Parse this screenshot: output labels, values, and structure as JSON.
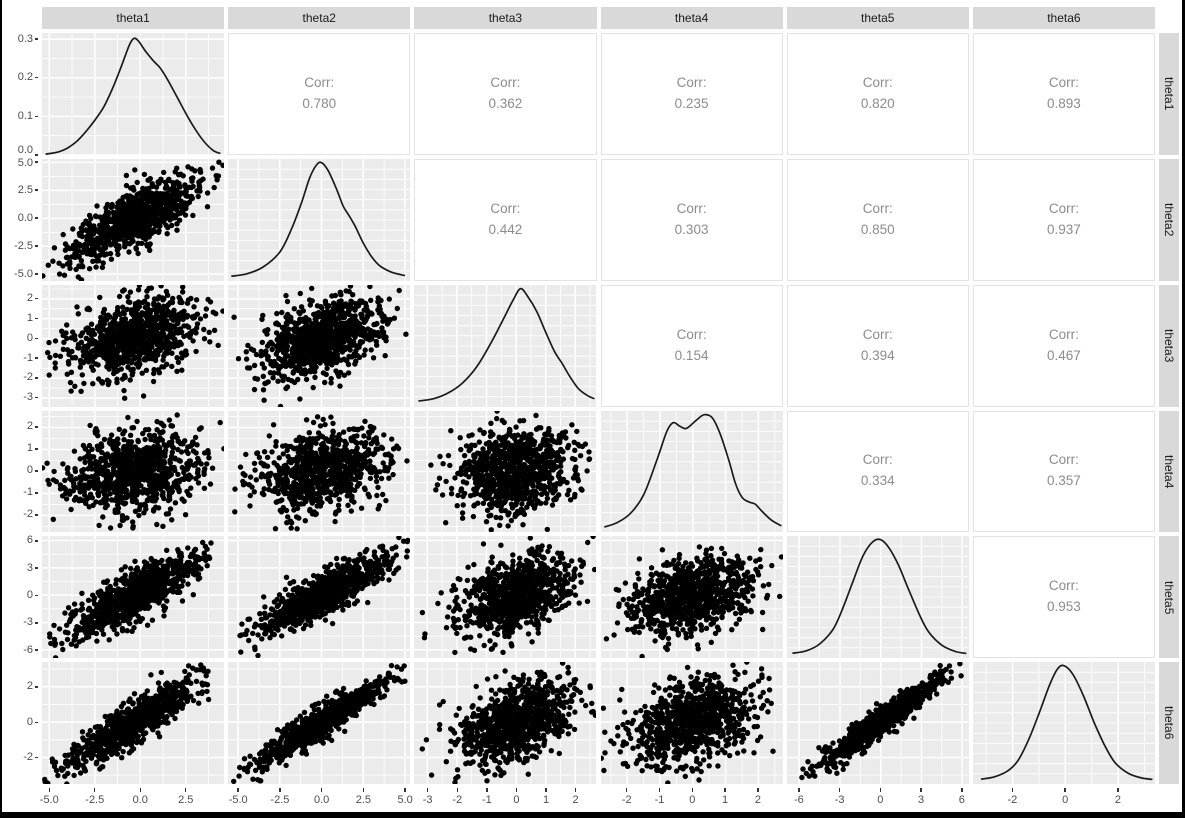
{
  "chart_data": {
    "type": "scatter",
    "subtype": "pairs-matrix-ggpairs",
    "title": "",
    "variables": [
      "theta1",
      "theta2",
      "theta3",
      "theta4",
      "theta5",
      "theta6"
    ],
    "matrix_layout": {
      "diagonal": "density-curve",
      "lower_triangle": "scatterplot",
      "upper_triangle": "correlation-label",
      "top_strips": [
        "theta1",
        "theta2",
        "theta3",
        "theta4",
        "theta5",
        "theta6"
      ],
      "right_strips": [
        "theta1",
        "theta2",
        "theta3",
        "theta4",
        "theta5",
        "theta6"
      ],
      "grid": "on"
    },
    "corr_prefix": "Corr:",
    "correlations": [
      {
        "x": "theta1",
        "y": "theta2",
        "value": 0.78,
        "label": "0.780"
      },
      {
        "x": "theta1",
        "y": "theta3",
        "value": 0.362,
        "label": "0.362"
      },
      {
        "x": "theta1",
        "y": "theta4",
        "value": 0.235,
        "label": "0.235"
      },
      {
        "x": "theta1",
        "y": "theta5",
        "value": 0.82,
        "label": "0.820"
      },
      {
        "x": "theta1",
        "y": "theta6",
        "value": 0.893,
        "label": "0.893"
      },
      {
        "x": "theta2",
        "y": "theta3",
        "value": 0.442,
        "label": "0.442"
      },
      {
        "x": "theta2",
        "y": "theta4",
        "value": 0.303,
        "label": "0.303"
      },
      {
        "x": "theta2",
        "y": "theta5",
        "value": 0.85,
        "label": "0.850"
      },
      {
        "x": "theta2",
        "y": "theta6",
        "value": 0.937,
        "label": "0.937"
      },
      {
        "x": "theta3",
        "y": "theta4",
        "value": 0.154,
        "label": "0.154"
      },
      {
        "x": "theta3",
        "y": "theta5",
        "value": 0.394,
        "label": "0.394"
      },
      {
        "x": "theta3",
        "y": "theta6",
        "value": 0.467,
        "label": "0.467"
      },
      {
        "x": "theta4",
        "y": "theta5",
        "value": 0.334,
        "label": "0.334"
      },
      {
        "x": "theta4",
        "y": "theta6",
        "value": 0.357,
        "label": "0.357"
      },
      {
        "x": "theta5",
        "y": "theta6",
        "value": 0.953,
        "label": "0.953"
      }
    ],
    "axes": {
      "theta1": {
        "range": [
          -5.4,
          4.6
        ],
        "ticks": [
          -5.0,
          -2.5,
          0.0,
          2.5
        ],
        "labels": [
          "-5.0",
          "-2.5",
          "0.0",
          "2.5"
        ]
      },
      "theta2": {
        "range": [
          -5.6,
          5.3
        ],
        "ticks": [
          -5.0,
          -2.5,
          0.0,
          2.5,
          5.0
        ],
        "labels": [
          "-5.0",
          "-2.5",
          "0.0",
          "2.5",
          "5.0"
        ]
      },
      "theta3": {
        "range": [
          -3.45,
          2.7
        ],
        "ticks": [
          -3,
          -2,
          -1,
          0,
          1,
          2
        ],
        "labels": [
          "-3",
          "-2",
          "-1",
          "0",
          "1",
          "2"
        ]
      },
      "theta4": {
        "range": [
          -2.8,
          2.75
        ],
        "ticks": [
          -2,
          -1,
          0,
          1,
          2
        ],
        "labels": [
          "-2",
          "-1",
          "0",
          "1",
          "2"
        ]
      },
      "theta5": {
        "range": [
          -6.9,
          6.5
        ],
        "ticks": [
          -6,
          -3,
          0,
          3,
          6
        ],
        "labels": [
          "-6",
          "-3",
          "0",
          "3",
          "6"
        ]
      },
      "theta6": {
        "range": [
          -3.5,
          3.4
        ],
        "ticks": [
          -2,
          0,
          2
        ],
        "labels": [
          "-2",
          "0",
          "2"
        ]
      }
    },
    "density_axis": {
      "range": [
        0,
        0.316
      ],
      "ticks": [
        0,
        0.1,
        0.2,
        0.3
      ],
      "labels": [
        "0.0",
        "0.1",
        "0.2",
        "0.3"
      ]
    },
    "densities": {
      "theta1": [
        [
          -5.2,
          0.002
        ],
        [
          -4.5,
          0.008
        ],
        [
          -4,
          0.018
        ],
        [
          -3.5,
          0.035
        ],
        [
          -3,
          0.06
        ],
        [
          -2.5,
          0.09
        ],
        [
          -2,
          0.125
        ],
        [
          -1.5,
          0.175
        ],
        [
          -1,
          0.235
        ],
        [
          -0.6,
          0.285
        ],
        [
          -0.35,
          0.302
        ],
        [
          -0.1,
          0.295
        ],
        [
          0.3,
          0.268
        ],
        [
          0.7,
          0.245
        ],
        [
          1.1,
          0.225
        ],
        [
          1.5,
          0.195
        ],
        [
          2,
          0.152
        ],
        [
          2.5,
          0.108
        ],
        [
          3,
          0.068
        ],
        [
          3.5,
          0.035
        ],
        [
          4,
          0.012
        ],
        [
          4.4,
          0.004
        ]
      ],
      "theta2": [
        [
          -5.4,
          0.01
        ],
        [
          -4.5,
          0.03
        ],
        [
          -3.5,
          0.09
        ],
        [
          -2.5,
          0.22
        ],
        [
          -1.8,
          0.42
        ],
        [
          -1.2,
          0.65
        ],
        [
          -0.7,
          0.87
        ],
        [
          -0.3,
          0.98
        ],
        [
          0,
          1.0
        ],
        [
          0.4,
          0.93
        ],
        [
          0.9,
          0.77
        ],
        [
          1.3,
          0.62
        ],
        [
          1.6,
          0.55
        ],
        [
          2,
          0.45
        ],
        [
          2.5,
          0.3
        ],
        [
          3,
          0.18
        ],
        [
          3.5,
          0.1
        ],
        [
          4.2,
          0.045
        ],
        [
          5,
          0.015
        ]
      ],
      "theta3": [
        [
          -3.3,
          0.02
        ],
        [
          -2.8,
          0.04
        ],
        [
          -2.3,
          0.09
        ],
        [
          -1.8,
          0.18
        ],
        [
          -1.3,
          0.33
        ],
        [
          -0.8,
          0.55
        ],
        [
          -0.4,
          0.75
        ],
        [
          -0.1,
          0.9
        ],
        [
          0.15,
          1.0
        ],
        [
          0.4,
          0.93
        ],
        [
          0.7,
          0.8
        ],
        [
          1,
          0.62
        ],
        [
          1.3,
          0.45
        ],
        [
          1.55,
          0.35
        ],
        [
          1.8,
          0.24
        ],
        [
          2.1,
          0.13
        ],
        [
          2.4,
          0.07
        ],
        [
          2.65,
          0.04
        ]
      ],
      "theta4": [
        [
          -2.7,
          0.02
        ],
        [
          -2.3,
          0.06
        ],
        [
          -1.9,
          0.14
        ],
        [
          -1.5,
          0.3
        ],
        [
          -1.1,
          0.6
        ],
        [
          -0.8,
          0.85
        ],
        [
          -0.6,
          0.93
        ],
        [
          -0.4,
          0.9
        ],
        [
          -0.2,
          0.88
        ],
        [
          0.1,
          0.95
        ],
        [
          0.35,
          1.0
        ],
        [
          0.6,
          0.97
        ],
        [
          0.85,
          0.82
        ],
        [
          1.1,
          0.6
        ],
        [
          1.3,
          0.4
        ],
        [
          1.5,
          0.28
        ],
        [
          1.7,
          0.24
        ],
        [
          1.9,
          0.22
        ],
        [
          2.1,
          0.16
        ],
        [
          2.4,
          0.08
        ],
        [
          2.7,
          0.03
        ]
      ],
      "theta5": [
        [
          -6.5,
          0.01
        ],
        [
          -5.5,
          0.03
        ],
        [
          -4.5,
          0.09
        ],
        [
          -3.5,
          0.22
        ],
        [
          -2.8,
          0.4
        ],
        [
          -2,
          0.65
        ],
        [
          -1.3,
          0.86
        ],
        [
          -0.6,
          0.98
        ],
        [
          0,
          1.0
        ],
        [
          0.6,
          0.93
        ],
        [
          1.3,
          0.78
        ],
        [
          2,
          0.58
        ],
        [
          2.8,
          0.36
        ],
        [
          3.5,
          0.2
        ],
        [
          4.5,
          0.08
        ],
        [
          5.5,
          0.025
        ],
        [
          6.3,
          0.008
        ]
      ],
      "theta6": [
        [
          -3.2,
          0.01
        ],
        [
          -2.7,
          0.03
        ],
        [
          -2.2,
          0.08
        ],
        [
          -1.8,
          0.17
        ],
        [
          -1.4,
          0.35
        ],
        [
          -1,
          0.58
        ],
        [
          -0.6,
          0.83
        ],
        [
          -0.3,
          0.97
        ],
        [
          -0.05,
          1.0
        ],
        [
          0.3,
          0.92
        ],
        [
          0.7,
          0.73
        ],
        [
          1.1,
          0.5
        ],
        [
          1.5,
          0.3
        ],
        [
          1.9,
          0.15
        ],
        [
          2.4,
          0.06
        ],
        [
          2.9,
          0.02
        ],
        [
          3.3,
          0.008
        ]
      ]
    },
    "scatter": {
      "n_points": 900,
      "point_radius": 2.7,
      "seed": 42,
      "marginals": {
        "theta1": {
          "mean": -0.3,
          "sd": 1.75
        },
        "theta2": {
          "mean": 0,
          "sd": 1.9
        },
        "theta3": {
          "mean": 0,
          "sd": 1.0
        },
        "theta4": {
          "mean": 0,
          "sd": 0.95
        },
        "theta5": {
          "mean": 0,
          "sd": 2.2
        },
        "theta6": {
          "mean": 0,
          "sd": 1.25
        }
      }
    },
    "style": {
      "panel_bg": "#EBEBEB",
      "strip_bg": "#D9D9D9",
      "grid_color": "#FFFFFF",
      "point_color": "#000000",
      "density_color": "#1B1B1B",
      "corr_text_color": "#8C8C8C",
      "tick_label_color": "#4D4D4D",
      "strip_text_color": "#1A1A1A",
      "figure_border_color": "#000000"
    }
  }
}
